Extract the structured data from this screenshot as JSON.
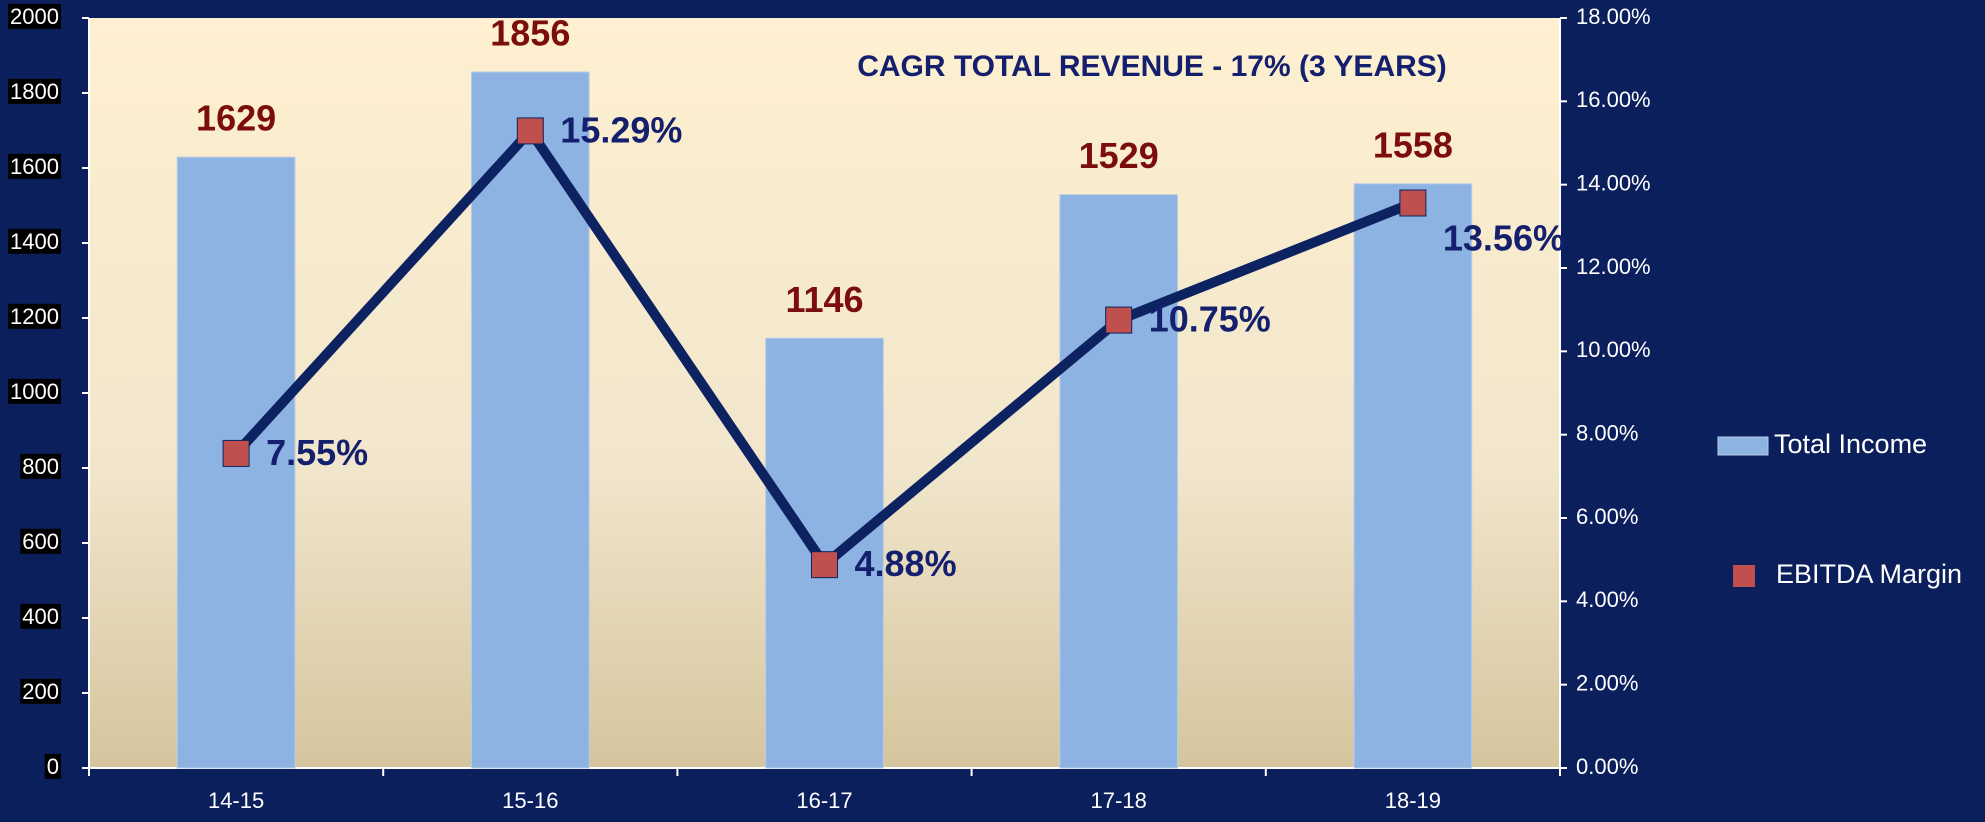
{
  "chart_data": {
    "type": "bar_line",
    "title": "CAGR  TOTAL REVENUE - 17% (3 YEARS)",
    "categories": [
      "14-15",
      "15-16",
      "16-17",
      "17-18",
      "18-19"
    ],
    "series": [
      {
        "name": "Total Income",
        "type": "bar",
        "color": "#8db3e2",
        "values": [
          1629,
          1856,
          1146,
          1529,
          1558
        ]
      },
      {
        "name": "EBITDA Margin",
        "type": "line",
        "axis": "y2",
        "color": "#c0504d",
        "line_color": "#0d2260",
        "values": [
          7.55,
          15.29,
          4.88,
          10.75,
          13.56
        ],
        "value_labels": [
          "7.55%",
          "15.29%",
          "4.88%",
          "10.75%",
          "13.56%"
        ]
      }
    ],
    "ylim": [
      0,
      2000
    ],
    "yticks": [
      0,
      200,
      400,
      600,
      800,
      1000,
      1200,
      1400,
      1600,
      1800,
      2000
    ],
    "y2lim": [
      0,
      18
    ],
    "y2ticks": [
      {
        "value": 0,
        "label": "0.00%"
      },
      {
        "value": 2,
        "label": "2.00%"
      },
      {
        "value": 4,
        "label": "4.00%"
      },
      {
        "value": 6,
        "label": "6.00%"
      },
      {
        "value": 8,
        "label": "8.00%"
      },
      {
        "value": 10,
        "label": "10.00%"
      },
      {
        "value": 12,
        "label": "12.00%"
      },
      {
        "value": 14,
        "label": "14.00%"
      },
      {
        "value": 16,
        "label": "16.00%"
      },
      {
        "value": 18,
        "label": "18.00%"
      }
    ],
    "legend": "right"
  }
}
